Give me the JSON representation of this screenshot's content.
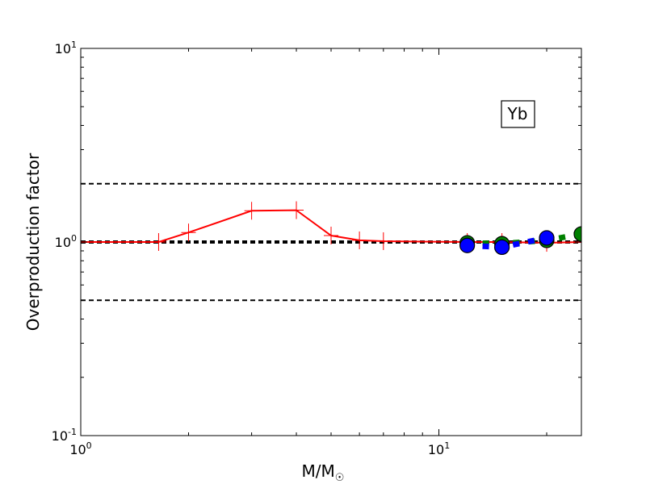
{
  "chart_data": {
    "type": "line",
    "title": "",
    "xlabel": "M/M",
    "xlabel_symbol": "☉",
    "ylabel": "Overproduction factor",
    "xscale": "log",
    "yscale": "log",
    "xlim": [
      1,
      25
    ],
    "ylim": [
      0.1,
      10
    ],
    "x_ticks": [
      {
        "value": 1,
        "base": "10",
        "exp": "0"
      },
      {
        "value": 10,
        "base": "10",
        "exp": "1"
      }
    ],
    "y_ticks": [
      {
        "value": 0.1,
        "base": "10",
        "exp": "-1"
      },
      {
        "value": 1,
        "base": "10",
        "exp": "0"
      },
      {
        "value": 10,
        "base": "10",
        "exp": "1"
      }
    ],
    "grid": false,
    "annotation": "Yb",
    "reference_lines": [
      {
        "y": 2.0,
        "style": "dashed",
        "color": "#000000",
        "width": 2
      },
      {
        "y": 1.0,
        "style": "dashed",
        "color": "#000000",
        "width": 4
      },
      {
        "y": 0.5,
        "style": "dashed",
        "color": "#000000",
        "width": 2
      }
    ],
    "series": [
      {
        "color": "#ff0000",
        "line": "solid",
        "marker": "plus",
        "x": [
          1,
          1.65,
          2,
          3,
          4,
          5,
          6,
          7,
          12,
          15,
          20,
          25
        ],
        "y": [
          1.0,
          1.0,
          1.12,
          1.45,
          1.46,
          1.08,
          1.02,
          1.01,
          1.0,
          1.0,
          0.99,
          1.0
        ]
      },
      {
        "color": "#008000",
        "line": "dotted",
        "marker": "circle",
        "x": [
          12,
          15,
          20,
          25
        ],
        "y": [
          0.99,
          0.98,
          1.02,
          1.1
        ]
      },
      {
        "color": "#0000ff",
        "line": "dotted",
        "marker": "circle",
        "x": [
          12,
          15,
          20
        ],
        "y": [
          0.96,
          0.94,
          1.05
        ]
      }
    ]
  }
}
